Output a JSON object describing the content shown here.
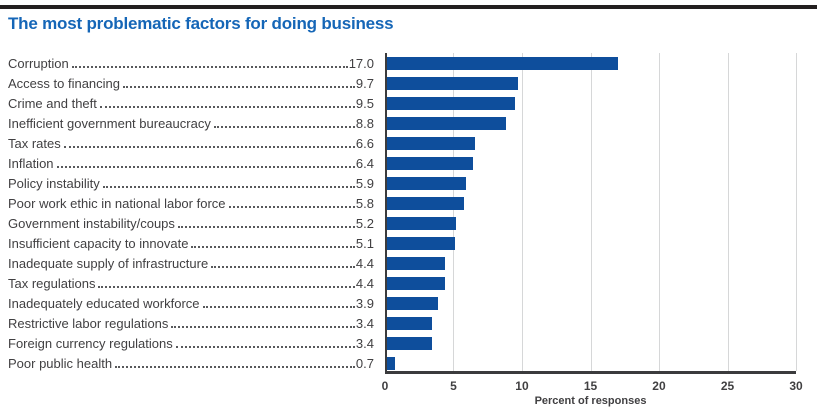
{
  "title": "The most problematic factors for doing business",
  "colors": {
    "bar": "#0E4E9C",
    "title": "#1566B7",
    "top_rule": "#231F20",
    "text": "#414042",
    "grid": "#D6D7D8",
    "axis": "#3B3B3D",
    "leader_dots": "#58595B"
  },
  "chart_data": {
    "type": "bar",
    "orientation": "horizontal",
    "title": "The most problematic factors for doing business",
    "categories": [
      "Corruption",
      "Access to financing",
      "Crime and theft",
      "Inefficient government bureaucracy",
      "Tax rates",
      "Inflation",
      "Policy instability",
      "Poor work ethic in national labor force",
      "Government instability/coups",
      "Insufficient capacity to innovate",
      "Inadequate supply of infrastructure",
      "Tax regulations",
      "Inadequately educated workforce",
      "Restrictive labor regulations",
      "Foreign currency regulations",
      "Poor public health"
    ],
    "values": [
      17.0,
      9.7,
      9.5,
      8.8,
      6.6,
      6.4,
      5.9,
      5.8,
      5.2,
      5.1,
      4.4,
      4.4,
      3.9,
      3.4,
      3.4,
      0.7
    ],
    "value_labels": [
      "17.0",
      "9.7",
      "9.5",
      "8.8",
      "6.6",
      "6.4",
      "5.9",
      "5.8",
      "5.2",
      "5.1",
      "4.4",
      "4.4",
      "3.9",
      "3.4",
      "3.4",
      "0.7"
    ],
    "xlabel": "Percent of responses",
    "xlim": [
      0,
      30
    ],
    "xticks": [
      0,
      5,
      10,
      15,
      20,
      25,
      30
    ],
    "grid": true,
    "legend": null
  }
}
